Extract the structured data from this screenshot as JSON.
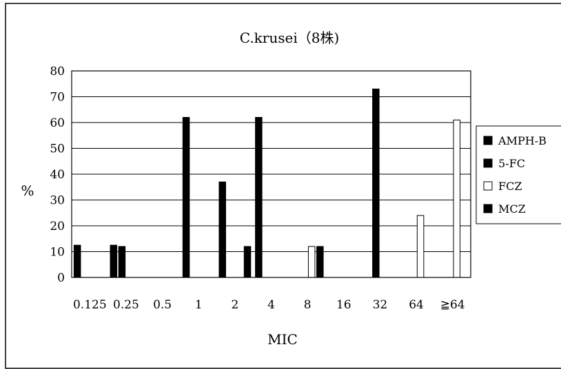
{
  "chart_data": {
    "type": "bar",
    "title": "C.krusei（8株)",
    "xlabel": "MIC",
    "ylabel": "%",
    "ylim": [
      0,
      80
    ],
    "yticks": [
      0,
      10,
      20,
      30,
      40,
      50,
      60,
      70,
      80
    ],
    "grid": true,
    "legend_position": "right",
    "categories": [
      "0.125",
      "0.25",
      "0.5",
      "1",
      "2",
      "4",
      "8",
      "16",
      "32",
      "64",
      "≧64"
    ],
    "series": [
      {
        "name": "AMPH-B",
        "color": "#000000",
        "values": [
          12.5,
          12.5,
          0,
          62,
          37,
          62,
          0,
          0,
          0,
          0,
          0
        ]
      },
      {
        "name": "5-FC",
        "color": "#000000",
        "values": [
          0,
          12,
          0,
          0,
          0,
          0,
          0,
          0,
          73,
          0,
          0
        ]
      },
      {
        "name": "FCZ",
        "color": "#ffffff",
        "values": [
          0,
          0,
          0,
          0,
          0,
          0,
          12,
          0,
          0,
          24,
          61
        ]
      },
      {
        "name": "MCZ",
        "color": "#000000",
        "values": [
          0,
          0,
          0,
          0,
          12,
          0,
          12,
          0,
          0,
          0,
          0
        ]
      }
    ]
  }
}
